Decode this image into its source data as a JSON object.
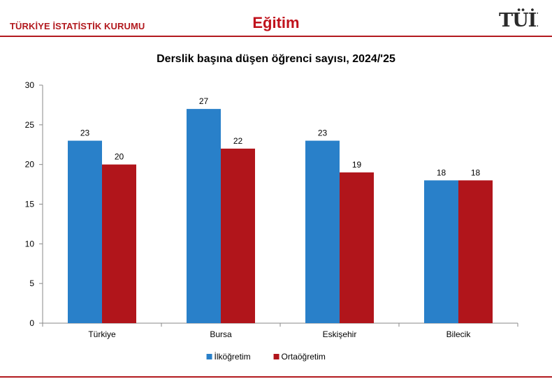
{
  "header": {
    "org_name": "TÜRKİYE İSTATİSTİK KURUMU",
    "section_title": "Eğitim",
    "logo_text": "TÜİK"
  },
  "colors": {
    "brand_red": "#b2191e",
    "series_1": "#2980c9",
    "series_2": "#b1151b"
  },
  "chart_data": {
    "type": "bar",
    "title": "Derslik başına düşen öğrenci sayısı, 2024/'25",
    "xlabel": "",
    "ylabel": "",
    "categories": [
      "Türkiye",
      "Bursa",
      "Eskişehir",
      "Bilecik"
    ],
    "series": [
      {
        "name": "İlköğretim",
        "values": [
          23,
          27,
          23,
          18
        ],
        "color": "#2980c9"
      },
      {
        "name": "Ortaöğretim",
        "values": [
          20,
          22,
          19,
          18
        ],
        "color": "#b1151b"
      }
    ],
    "ylim": [
      0,
      30
    ],
    "yticks": [
      0,
      5,
      10,
      15,
      20,
      25,
      30
    ],
    "data_labels": true,
    "grid": false,
    "legend": "bottom"
  }
}
